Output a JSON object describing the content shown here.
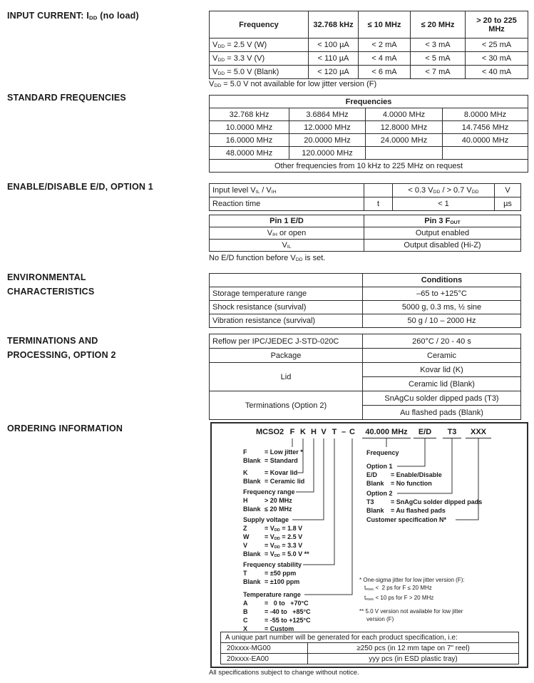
{
  "colors": {
    "text": "#1a1a1a",
    "border": "#2b2b2b",
    "background": "#ffffff"
  },
  "footer_note": "All specifications subject to change without notice.",
  "input_current": {
    "heading": "INPUT CURRENT: I{DD} (no load)",
    "headers": [
      "Frequency",
      "32.768 kHz",
      "≤ 10 MHz",
      "≤ 20 MHz",
      "> 20 to 225 MHz"
    ],
    "rows": [
      [
        "V{DD} = 2.5 V (W)",
        "< 100 µA",
        "< 2 mA",
        "< 3 mA",
        "< 25 mA"
      ],
      [
        "V{DD} = 3.3 V (V)",
        "< 110 µA",
        "< 4 mA",
        "< 5 mA",
        "< 30 mA"
      ],
      [
        "V{DD} = 5.0 V (Blank)",
        "< 120 µA",
        "< 6 mA",
        "< 7 mA",
        "< 40 mA"
      ]
    ],
    "note": "V{DD} = 5.0 V not available for low jitter version (F)"
  },
  "standard_frequencies": {
    "heading": "STANDARD FREQUENCIES",
    "title": "Frequencies",
    "rows": [
      [
        "32.768 kHz",
        "3.6864 MHz",
        "4.0000 MHz",
        "8.0000 MHz"
      ],
      [
        "10.0000 MHz",
        "12.0000 MHz",
        "12.8000 MHz",
        "14.7456 MHz"
      ],
      [
        "16.0000 MHz",
        "20.0000 MHz",
        "24.0000 MHz",
        "40.0000 MHz"
      ],
      [
        "48.0000 MHz",
        "120.0000 MHz",
        "",
        ""
      ]
    ],
    "footer": "Other frequencies from 10 kHz to 225 MHz on request"
  },
  "enable_disable": {
    "heading": "ENABLE/DISABLE E/D, OPTION 1",
    "levels": [
      [
        "Input level V{IL} / V{IH}",
        "",
        "< 0.3 V{DD} / > 0.7 V{DD}",
        "V"
      ],
      [
        "Reaction time",
        "t",
        "< 1",
        "µs"
      ]
    ],
    "pins": {
      "headers": [
        "Pin 1 E/D",
        "Pin 3 F{OUT}"
      ],
      "rows": [
        [
          "V{IH} or open",
          "Output enabled"
        ],
        [
          "V{IL}",
          "Output disabled (Hi-Z)"
        ]
      ]
    },
    "note": "No E/D function before V{DD} is set."
  },
  "environmental": {
    "heading": "ENVIRONMENTAL\nCHARACTERISTICS",
    "corner": "",
    "header": "Conditions",
    "rows": [
      [
        "Storage temperature range",
        "–65 to +125°C"
      ],
      [
        "Shock resistance (survival)",
        "5000 g, 0.3 ms, ½ sine"
      ],
      [
        "Vibration resistance (survival)",
        "50 g / 10 – 2000 Hz"
      ]
    ]
  },
  "terminations": {
    "heading": "TERMINATIONS AND\nPROCESSING, OPTION 2",
    "reflow_label": "Reflow per IPC/JEDEC J-STD-020C",
    "reflow_value": "260°C / 20 - 40 s",
    "package_label": "Package",
    "package_value": "Ceramic",
    "lid_label": "Lid",
    "lid_options": [
      "Kovar lid (K)",
      "Ceramic lid (Blank)"
    ],
    "term_label": "Terminations (Option 2)",
    "term_options": [
      "SnAgCu solder dipped pads (T3)",
      "Au flashed pads (Blank)"
    ]
  },
  "ordering": {
    "heading": "ORDERING INFORMATION",
    "part": {
      "prefix": "MCSO2",
      "letters": [
        "F",
        "K",
        "H",
        "V",
        "T",
        "–",
        "C"
      ],
      "freq": "40.000 MHz",
      "opt1": "E/D",
      "opt2": "T3",
      "custom": "XXX"
    },
    "left": [
      {
        "title": "",
        "lines": [
          [
            "F",
            "= Low jitter *"
          ],
          [
            "Blank",
            "= Standard"
          ]
        ]
      },
      {
        "title": "",
        "lines": [
          [
            "K",
            "= Kovar lid"
          ],
          [
            "Blank",
            "= Ceramic lid"
          ]
        ]
      },
      {
        "title": "Frequency range",
        "lines": [
          [
            "H",
            "> 20 MHz"
          ],
          [
            "Blank",
            "≤ 20 MHz"
          ]
        ]
      },
      {
        "title": "Supply voltage",
        "lines": [
          [
            "Z",
            "= V{DD} = 1.8 V"
          ],
          [
            "W",
            "= V{DD} = 2.5 V"
          ],
          [
            "V",
            "= V{DD} = 3.3 V"
          ],
          [
            "Blank",
            "= V{DD} = 5.0 V **"
          ]
        ]
      },
      {
        "title": "Frequency stability",
        "lines": [
          [
            "T",
            "= ±50 ppm"
          ],
          [
            "Blank",
            "= ±100 ppm"
          ]
        ]
      },
      {
        "title": "Temperature range",
        "lines": [
          [
            "A",
            "=   0 to   +70°C"
          ],
          [
            "B",
            "= -40 to   +85°C"
          ],
          [
            "C",
            "= -55 to +125°C"
          ],
          [
            "X",
            "= Custom"
          ]
        ]
      }
    ],
    "right": [
      {
        "title": "Frequency",
        "lines": []
      },
      {
        "title": "Option 1",
        "lines": [
          [
            "E/D",
            "= Enable/Disable"
          ],
          [
            "Blank",
            "= No function"
          ]
        ]
      },
      {
        "title": "Option 2",
        "lines": [
          [
            "T3",
            "= SnAgCu solder dipped pads"
          ],
          [
            "Blank",
            "= Au flashed pads"
          ]
        ]
      },
      {
        "title": "Customer specification N*",
        "lines": []
      }
    ],
    "footnote1": [
      "* One-sigma jitter for low jitter version (F):",
      "t{RMS} <  2 ps for F ≤ 20 MHz",
      "t{RMS} < 10 ps for F > 20 MHz"
    ],
    "footnote2": [
      "** 5.0 V version not available for low jitter",
      "version (F)"
    ],
    "unique": {
      "header": "A unique part number will be generated for each product specification, i.e:",
      "rows": [
        [
          "20xxxx-MG00",
          "≥250 pcs  (in 12 mm tape on 7\" reel)"
        ],
        [
          "20xxxx-EA00",
          "yyy pcs  (in ESD plastic tray)"
        ]
      ]
    }
  }
}
